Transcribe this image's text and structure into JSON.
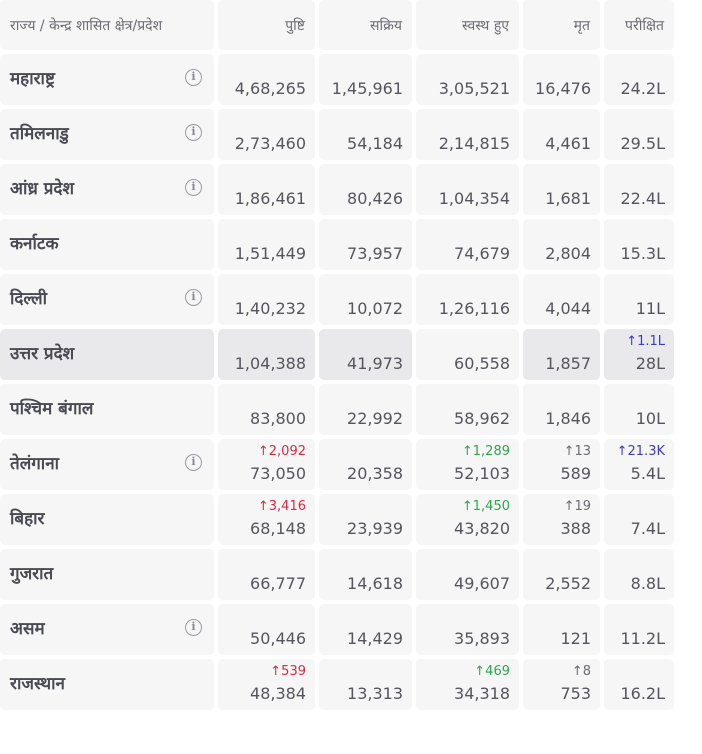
{
  "headers": [
    "राज्य / केन्द्र शासित क्षेत्र/प्रदेश",
    "पुष्टि",
    "सक्रिय",
    "स्वस्थ हुए",
    "मृत",
    "परीक्षित"
  ],
  "rows": [
    {
      "state": "महाराष्ट्र",
      "info": true,
      "confirmed": "4,68,265",
      "active": "1,45,961",
      "recovered": "3,05,521",
      "deceased": "16,476",
      "tested": "24.2L"
    },
    {
      "state": "तमिलनाडु",
      "info": true,
      "confirmed": "2,73,460",
      "active": "54,184",
      "recovered": "2,14,815",
      "deceased": "4,461",
      "tested": "29.5L"
    },
    {
      "state": "आंध्र प्रदेश",
      "info": true,
      "confirmed": "1,86,461",
      "active": "80,426",
      "recovered": "1,04,354",
      "deceased": "1,681",
      "tested": "22.4L"
    },
    {
      "state": "कर्नाटक",
      "info": false,
      "confirmed": "1,51,449",
      "active": "73,957",
      "recovered": "74,679",
      "deceased": "2,804",
      "tested": "15.3L"
    },
    {
      "state": "दिल्ली",
      "info": true,
      "confirmed": "1,40,232",
      "active": "10,072",
      "recovered": "1,26,116",
      "deceased": "4,044",
      "tested": "11L"
    },
    {
      "state": "उत्तर प्रदेश",
      "info": false,
      "highlight": true,
      "confirmed": "1,04,388",
      "active": "41,973",
      "recovered": "60,558",
      "deceased": "1,857",
      "tested": "28L",
      "d_tested": "↑1.1L"
    },
    {
      "state": "पश्चिम बंगाल",
      "info": false,
      "confirmed": "83,800",
      "active": "22,992",
      "recovered": "58,962",
      "deceased": "1,846",
      "tested": "10L"
    },
    {
      "state": "तेलंगाना",
      "info": true,
      "confirmed": "73,050",
      "active": "20,358",
      "recovered": "52,103",
      "deceased": "589",
      "tested": "5.4L",
      "d_confirmed": "↑2,092",
      "d_recovered": "↑1,289",
      "d_deceased": "↑13",
      "d_tested": "↑21.3K"
    },
    {
      "state": "बिहार",
      "info": false,
      "confirmed": "68,148",
      "active": "23,939",
      "recovered": "43,820",
      "deceased": "388",
      "tested": "7.4L",
      "d_confirmed": "↑3,416",
      "d_recovered": "↑1,450",
      "d_deceased": "↑19"
    },
    {
      "state": "गुजरात",
      "info": false,
      "confirmed": "66,777",
      "active": "14,618",
      "recovered": "49,607",
      "deceased": "2,552",
      "tested": "8.8L"
    },
    {
      "state": "असम",
      "info": true,
      "confirmed": "50,446",
      "active": "14,429",
      "recovered": "35,893",
      "deceased": "121",
      "tested": "11.2L"
    },
    {
      "state": "राजस्थान",
      "info": false,
      "confirmed": "48,384",
      "active": "13,313",
      "recovered": "34,318",
      "deceased": "753",
      "tested": "16.2L",
      "d_confirmed": "↑539",
      "d_recovered": "↑469",
      "d_deceased": "↑8"
    }
  ],
  "colors": {
    "confirmed_delta": "#e0263f",
    "recovered_delta": "#2ba84a",
    "deceased_delta": "#6b6b73",
    "tested_delta": "#3a3ad0"
  },
  "icons": {
    "info": "info-icon"
  }
}
